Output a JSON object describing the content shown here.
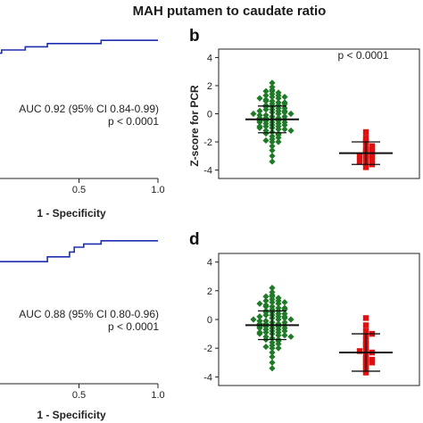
{
  "title": "MAH putamen to caudate ratio",
  "colors": {
    "roc_line": "#1f2fb0",
    "group1": "#1e7a26",
    "group2": "#e01010",
    "axis": "#222222"
  },
  "chart_data": [
    {
      "id": "roc-top",
      "type": "line",
      "panel_label": "",
      "xlabel": "1 - Specificity",
      "ylabel": "",
      "xlim": [
        0,
        1
      ],
      "xticks": [
        "0.5",
        "1.0"
      ],
      "x": [
        0.0,
        0.01,
        0.01,
        0.16,
        0.16,
        0.3,
        0.3,
        0.64,
        0.64,
        1.0
      ],
      "y": [
        0.78,
        0.78,
        0.8,
        0.8,
        0.82,
        0.82,
        0.84,
        0.84,
        0.86,
        0.86
      ],
      "annotations": [
        "AUC 0.92 (95% CI 0.84-0.99)",
        "p < 0.0001"
      ]
    },
    {
      "id": "scatter-b",
      "type": "scatter",
      "panel_label": "b",
      "ylabel": "Z-score for PCR",
      "ylim": [
        -4.6,
        4.6
      ],
      "yticks": [
        4,
        2,
        0,
        -2,
        -4
      ],
      "groups": [
        {
          "mean": -0.4,
          "sd_upper": 0.55,
          "sd_lower": -1.35,
          "values": [
            2.2,
            1.9,
            1.7,
            1.6,
            1.5,
            1.4,
            1.3,
            1.2,
            1.1,
            1.0,
            0.9,
            0.8,
            0.7,
            0.6,
            0.5,
            0.4,
            0.3,
            0.2,
            0.1,
            0.0,
            -0.1,
            -0.2,
            -0.3,
            -0.4,
            -0.5,
            -0.6,
            -0.7,
            -0.8,
            -0.9,
            -1.0,
            -1.1,
            -1.2,
            -1.3,
            -1.4,
            -1.6,
            -1.8,
            -2.0,
            -2.3,
            -2.6,
            -3.0,
            -3.4,
            1.6,
            1.2,
            0.9,
            0.6,
            0.3,
            0.1,
            -0.1,
            -0.3,
            -0.5,
            -0.7,
            -0.9,
            -1.1,
            -1.4,
            -1.7,
            1.1,
            0.8,
            0.5,
            0.2,
            0.0,
            -0.2,
            -0.4,
            -0.6,
            -0.8,
            -1.0,
            -1.2,
            0.4,
            0.0,
            -0.3,
            -0.6,
            -0.9,
            -1.5,
            0.7,
            -0.5,
            -2.0,
            1.3,
            -1.9,
            0.2
          ]
        },
        {
          "mean": -2.8,
          "sd_upper": -2.0,
          "sd_lower": -3.6,
          "values": [
            -1.3,
            -1.7,
            -1.9,
            -2.1,
            -2.3,
            -2.5,
            -2.6,
            -2.7,
            -2.8,
            -2.9,
            -3.0,
            -3.1,
            -3.2,
            -3.3,
            -3.4,
            -3.5,
            -3.6,
            -3.8,
            -2.4,
            -3.0
          ]
        }
      ],
      "annotations": [
        "p < 0.0001"
      ]
    },
    {
      "id": "roc-bottom",
      "type": "line",
      "panel_label": "",
      "xlabel": "1 - Specificity",
      "ylabel": "",
      "xlim": [
        0,
        1
      ],
      "xticks": [
        "0.5",
        "1.0"
      ],
      "x": [
        0.0,
        0.3,
        0.3,
        0.44,
        0.44,
        0.47,
        0.47,
        0.53,
        0.53,
        0.64,
        0.64,
        1.0
      ],
      "y": [
        0.76,
        0.76,
        0.79,
        0.79,
        0.82,
        0.82,
        0.85,
        0.85,
        0.87,
        0.87,
        0.89,
        0.89
      ],
      "annotations": [
        "AUC 0.88 (95% CI 0.80-0.96)",
        "p < 0.0001"
      ]
    },
    {
      "id": "scatter-d",
      "type": "scatter",
      "panel_label": "d",
      "ylabel": "",
      "ylim": [
        -4.6,
        4.6
      ],
      "yticks": [
        4,
        2,
        0,
        -2,
        -4
      ],
      "groups": [
        {
          "mean": -0.4,
          "sd_upper": 0.6,
          "sd_lower": -1.4,
          "values": [
            2.2,
            1.9,
            1.7,
            1.6,
            1.5,
            1.4,
            1.3,
            1.2,
            1.1,
            1.0,
            0.9,
            0.8,
            0.7,
            0.6,
            0.5,
            0.4,
            0.3,
            0.2,
            0.1,
            0.0,
            -0.1,
            -0.2,
            -0.3,
            -0.4,
            -0.5,
            -0.6,
            -0.7,
            -0.8,
            -0.9,
            -1.0,
            -1.1,
            -1.2,
            -1.3,
            -1.4,
            -1.6,
            -1.8,
            -2.0,
            -2.3,
            -2.6,
            -3.0,
            -3.4,
            1.6,
            1.2,
            0.9,
            0.6,
            0.3,
            0.1,
            -0.1,
            -0.3,
            -0.5,
            -0.7,
            -0.9,
            -1.1,
            -1.4,
            -1.7,
            1.1,
            0.8,
            0.5,
            0.2,
            0.0,
            -0.2,
            -0.4,
            -0.6,
            -0.8,
            -1.0,
            -1.2,
            0.4,
            0.0,
            -0.3,
            -0.6,
            -0.9,
            -1.5,
            0.7,
            -0.5,
            -2.0,
            1.3,
            -1.9,
            0.2
          ]
        },
        {
          "mean": -2.3,
          "sd_upper": -1.0,
          "sd_lower": -3.6,
          "values": [
            0.1,
            -0.4,
            -0.8,
            -1.2,
            -1.5,
            -1.7,
            -1.9,
            -2.1,
            -2.3,
            -2.5,
            -2.7,
            -2.9,
            -3.1,
            -3.3,
            -3.5,
            -3.7,
            -1.0,
            -2.2,
            -2.8,
            -3.0
          ]
        }
      ],
      "annotations": []
    }
  ]
}
